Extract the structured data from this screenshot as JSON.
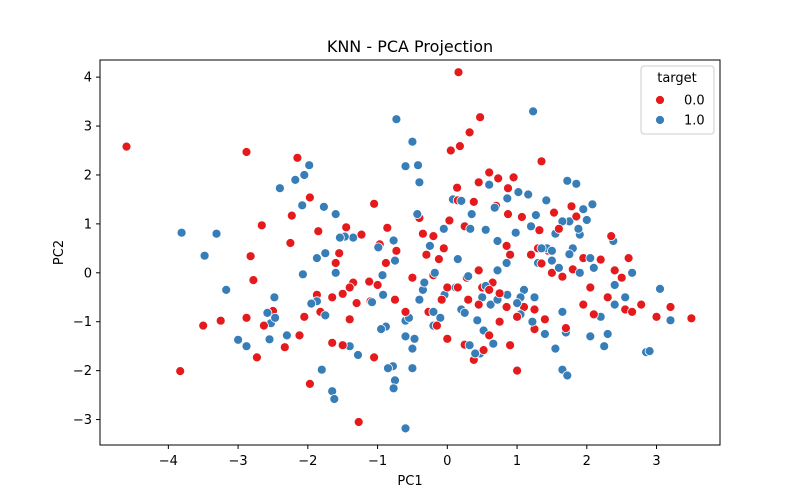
{
  "chart_data": {
    "type": "scatter",
    "title": "KNN - PCA Projection",
    "xlabel": "PC1",
    "ylabel": "PC2",
    "xlim": [
      -4.98,
      3.91
    ],
    "ylim": [
      -3.52,
      4.35
    ],
    "xticks": [
      -4,
      -3,
      -2,
      -1,
      0,
      1,
      2,
      3
    ],
    "yticks": [
      -3,
      -2,
      -1,
      0,
      1,
      2,
      3,
      4
    ],
    "xtick_labels": [
      "−4",
      "−3",
      "−2",
      "−1",
      "0",
      "1",
      "2",
      "3"
    ],
    "ytick_labels": [
      "−3",
      "−2",
      "−1",
      "0",
      "1",
      "2",
      "3",
      "4"
    ],
    "grid": false,
    "legend": {
      "title": "target",
      "placement": "upper right",
      "entries": [
        {
          "label": "0.0",
          "color": "#e41a1c"
        },
        {
          "label": "1.0",
          "color": "#377eb8"
        }
      ]
    },
    "series": [
      {
        "name": "0.0",
        "color": "#e41a1c",
        "points": [
          [
            -4.6,
            2.58
          ],
          [
            -3.83,
            -2.01
          ],
          [
            -2.88,
            2.47
          ],
          [
            -2.15,
            2.35
          ],
          [
            -1.97,
            1.54
          ],
          [
            -2.23,
            1.17
          ],
          [
            -2.66,
            0.97
          ],
          [
            -2.25,
            0.61
          ],
          [
            -1.85,
            0.85
          ],
          [
            -1.45,
            0.93
          ],
          [
            -1.23,
            0.78
          ],
          [
            -1.05,
            1.41
          ],
          [
            -0.86,
            0.92
          ],
          [
            -0.73,
            0.45
          ],
          [
            -0.88,
            0.2
          ],
          [
            -0.97,
            0.58
          ],
          [
            -0.35,
            0.8
          ],
          [
            -0.4,
            1.12
          ],
          [
            -0.2,
            0.75
          ],
          [
            -0.5,
            -0.1
          ],
          [
            -0.3,
            0.37
          ],
          [
            -0.12,
            0.28
          ],
          [
            0.03,
            1.07
          ],
          [
            0.14,
            1.74
          ],
          [
            0.18,
            2.59
          ],
          [
            0.32,
            2.87
          ],
          [
            0.47,
            3.18
          ],
          [
            0.16,
            4.1
          ],
          [
            0.15,
            1.48
          ],
          [
            0.45,
            1.85
          ],
          [
            0.73,
            1.93
          ],
          [
            0.87,
            1.73
          ],
          [
            0.7,
            1.37
          ],
          [
            0.95,
            1.95
          ],
          [
            0.87,
            1.2
          ],
          [
            1.07,
            1.14
          ],
          [
            1.32,
            0.87
          ],
          [
            1.35,
            2.28
          ],
          [
            1.53,
            1.23
          ],
          [
            1.78,
            1.36
          ],
          [
            1.85,
            1.15
          ],
          [
            1.2,
            0.37
          ],
          [
            1.35,
            0.19
          ],
          [
            1.5,
            0.0
          ],
          [
            1.65,
            -0.08
          ],
          [
            1.8,
            0.07
          ],
          [
            1.95,
            0.3
          ],
          [
            2.2,
            0.27
          ],
          [
            2.6,
            0.3
          ],
          [
            2.5,
            -0.1
          ],
          [
            2.3,
            -0.5
          ],
          [
            2.1,
            -0.85
          ],
          [
            1.95,
            -0.65
          ],
          [
            2.55,
            -0.75
          ],
          [
            2.65,
            -0.8
          ],
          [
            3.0,
            -0.9
          ],
          [
            3.2,
            -0.7
          ],
          [
            3.5,
            -0.93
          ],
          [
            2.78,
            -0.65
          ],
          [
            1.7,
            -1.13
          ],
          [
            1.4,
            -0.95
          ],
          [
            1.25,
            -1.15
          ],
          [
            1.0,
            -0.9
          ],
          [
            0.85,
            -0.7
          ],
          [
            0.75,
            -1.0
          ],
          [
            0.9,
            -1.48
          ],
          [
            1.0,
            -2.0
          ],
          [
            0.6,
            -1.28
          ],
          [
            0.52,
            -1.58
          ],
          [
            0.38,
            -1.78
          ],
          [
            0.25,
            -1.47
          ],
          [
            0.0,
            -1.35
          ],
          [
            -0.15,
            -1.08
          ],
          [
            -0.27,
            -0.8
          ],
          [
            -0.08,
            -0.55
          ],
          [
            0.15,
            -0.3
          ],
          [
            0.28,
            -0.1
          ],
          [
            0.45,
            0.05
          ],
          [
            0.6,
            -0.35
          ],
          [
            0.75,
            -0.42
          ],
          [
            1.05,
            -0.52
          ],
          [
            1.1,
            -0.7
          ],
          [
            -1.4,
            -0.95
          ],
          [
            -1.3,
            -0.62
          ],
          [
            -1.1,
            -0.58
          ],
          [
            -1.65,
            -1.43
          ],
          [
            -1.5,
            -1.48
          ],
          [
            -1.05,
            -1.73
          ],
          [
            -1.27,
            -3.05
          ],
          [
            -1.97,
            -2.27
          ],
          [
            -2.12,
            -1.28
          ],
          [
            -2.33,
            -1.52
          ],
          [
            -2.63,
            -1.08
          ],
          [
            -2.73,
            -1.73
          ],
          [
            -2.88,
            -0.92
          ],
          [
            -3.5,
            -1.08
          ],
          [
            -3.25,
            -0.98
          ],
          [
            -2.82,
            0.34
          ],
          [
            -2.78,
            -0.15
          ],
          [
            -2.5,
            -0.78
          ],
          [
            -1.87,
            -0.45
          ],
          [
            -1.65,
            -0.5
          ],
          [
            -1.5,
            -0.43
          ],
          [
            -1.4,
            -0.3
          ],
          [
            -1.12,
            -0.18
          ],
          [
            -1.0,
            -0.25
          ],
          [
            -0.75,
            -0.55
          ],
          [
            -0.6,
            -0.8
          ],
          [
            -0.2,
            -0.05
          ],
          [
            0.0,
            -0.3
          ],
          [
            0.3,
            -0.55
          ],
          [
            0.5,
            -0.3
          ],
          [
            0.65,
            -0.2
          ],
          [
            -1.82,
            -0.8
          ],
          [
            -2.05,
            -0.9
          ],
          [
            -1.35,
            -0.2
          ],
          [
            0.38,
            1.45
          ],
          [
            0.6,
            2.05
          ],
          [
            0.05,
            2.5
          ],
          [
            0.25,
            0.95
          ],
          [
            -0.05,
            0.5
          ],
          [
            1.45,
            0.45
          ],
          [
            1.3,
            0.5
          ],
          [
            1.25,
            -0.75
          ],
          [
            1.6,
            0.9
          ],
          [
            2.35,
            0.75
          ],
          [
            2.4,
            0.05
          ],
          [
            2.05,
            -0.3
          ],
          [
            0.9,
            0.37
          ],
          [
            -1.6,
            0.2
          ],
          [
            -1.55,
            0.4
          ],
          [
            0.45,
            -0.65
          ],
          [
            0.85,
            0.55
          ]
        ]
      },
      {
        "name": "1.0",
        "color": "#377eb8",
        "points": [
          [
            -3.81,
            0.82
          ],
          [
            -3.31,
            0.8
          ],
          [
            -3.48,
            0.35
          ],
          [
            -3.17,
            -0.35
          ],
          [
            -2.58,
            -0.82
          ],
          [
            -2.53,
            -1.03
          ],
          [
            -2.47,
            -0.92
          ],
          [
            -2.48,
            -0.5
          ],
          [
            -2.3,
            -1.28
          ],
          [
            -2.55,
            -1.36
          ],
          [
            -2.88,
            -1.5
          ],
          [
            -3.0,
            -1.37
          ],
          [
            -2.67,
            0.97
          ],
          [
            -2.4,
            1.73
          ],
          [
            -2.18,
            1.9
          ],
          [
            -2.05,
            2.0
          ],
          [
            -1.98,
            2.2
          ],
          [
            -2.08,
            1.38
          ],
          [
            -1.77,
            1.35
          ],
          [
            -1.6,
            1.2
          ],
          [
            -1.47,
            0.74
          ],
          [
            -1.54,
            0.72
          ],
          [
            -1.87,
            0.3
          ],
          [
            -1.87,
            -0.58
          ],
          [
            -1.95,
            -0.63
          ],
          [
            -2.07,
            -0.03
          ],
          [
            -1.75,
            -0.87
          ],
          [
            -1.8,
            -1.98
          ],
          [
            -1.62,
            -2.58
          ],
          [
            -1.65,
            -2.42
          ],
          [
            -1.4,
            -1.5
          ],
          [
            -1.28,
            -1.68
          ],
          [
            -0.95,
            -1.15
          ],
          [
            -0.88,
            -1.1
          ],
          [
            -1.08,
            -0.6
          ],
          [
            -0.92,
            -0.45
          ],
          [
            -0.85,
            -1.95
          ],
          [
            -0.75,
            -2.2
          ],
          [
            -0.77,
            -2.36
          ],
          [
            -0.78,
            -1.91
          ],
          [
            -0.6,
            -3.18
          ],
          [
            -0.5,
            -1.95
          ],
          [
            -0.6,
            -0.98
          ],
          [
            -0.55,
            -0.92
          ],
          [
            -0.6,
            -1.3
          ],
          [
            -0.4,
            -0.55
          ],
          [
            -0.33,
            -0.2
          ],
          [
            -0.47,
            -1.35
          ],
          [
            -0.5,
            -1.55
          ],
          [
            -0.2,
            -1.08
          ],
          [
            -0.2,
            -0.8
          ],
          [
            -0.04,
            -0.45
          ],
          [
            0.12,
            -0.3
          ],
          [
            0.2,
            -0.75
          ],
          [
            0.43,
            -0.97
          ],
          [
            0.52,
            -1.18
          ],
          [
            0.47,
            -1.65
          ],
          [
            0.4,
            -1.65
          ],
          [
            0.32,
            -1.48
          ],
          [
            0.66,
            -1.45
          ],
          [
            0.62,
            -0.65
          ],
          [
            0.5,
            -0.5
          ],
          [
            0.72,
            -0.55
          ],
          [
            0.86,
            -0.45
          ],
          [
            1.0,
            -0.62
          ],
          [
            1.1,
            -0.35
          ],
          [
            1.25,
            -0.5
          ],
          [
            1.3,
            0.2
          ],
          [
            1.35,
            0.5
          ],
          [
            1.5,
            0.25
          ],
          [
            1.6,
            0.1
          ],
          [
            1.75,
            0.38
          ],
          [
            1.8,
            0.5
          ],
          [
            1.88,
            0.9
          ],
          [
            1.9,
            0.78
          ],
          [
            2.08,
            1.4
          ],
          [
            2.0,
            1.08
          ],
          [
            1.95,
            1.3
          ],
          [
            1.55,
            0.8
          ],
          [
            1.65,
            1.05
          ],
          [
            1.75,
            1.05
          ],
          [
            1.72,
            1.88
          ],
          [
            1.85,
            1.82
          ],
          [
            1.42,
            1.48
          ],
          [
            1.27,
            1.18
          ],
          [
            1.16,
            1.6
          ],
          [
            1.02,
            1.65
          ],
          [
            0.86,
            1.52
          ],
          [
            0.68,
            1.33
          ],
          [
            0.2,
            1.47
          ],
          [
            0.08,
            1.5
          ],
          [
            -0.42,
            2.2
          ],
          [
            -0.4,
            1.85
          ],
          [
            -0.43,
            1.2
          ],
          [
            -0.5,
            2.68
          ],
          [
            -0.73,
            3.14
          ],
          [
            -0.6,
            2.18
          ],
          [
            -0.77,
            0.66
          ],
          [
            -0.75,
            0.25
          ],
          [
            -0.93,
            -0.05
          ],
          [
            -0.99,
            0.52
          ],
          [
            -1.35,
            0.72
          ],
          [
            -1.6,
            0.0
          ],
          [
            -1.75,
            0.4
          ],
          [
            -0.25,
            0.55
          ],
          [
            -0.05,
            0.9
          ],
          [
            0.35,
            1.2
          ],
          [
            0.55,
            0.88
          ],
          [
            0.72,
            0.65
          ],
          [
            0.98,
            0.82
          ],
          [
            1.2,
            0.95
          ],
          [
            1.5,
            0.45
          ],
          [
            1.9,
            0.0
          ],
          [
            2.1,
            0.1
          ],
          [
            2.4,
            -0.25
          ],
          [
            2.55,
            -0.5
          ],
          [
            2.3,
            -1.25
          ],
          [
            2.25,
            -1.5
          ],
          [
            2.05,
            -1.3
          ],
          [
            2.2,
            -0.9
          ],
          [
            2.85,
            -1.62
          ],
          [
            2.9,
            -1.6
          ],
          [
            3.05,
            -0.33
          ],
          [
            3.2,
            -0.97
          ],
          [
            2.4,
            -0.65
          ],
          [
            2.38,
            0.65
          ],
          [
            2.05,
            0.3
          ],
          [
            2.65,
            0.0
          ],
          [
            1.65,
            -0.8
          ],
          [
            1.7,
            -1.22
          ],
          [
            1.55,
            -1.55
          ],
          [
            1.65,
            -1.98
          ],
          [
            1.72,
            -2.1
          ],
          [
            1.4,
            -1.25
          ],
          [
            1.22,
            -1.0
          ],
          [
            1.05,
            -0.85
          ],
          [
            0.55,
            -0.27
          ],
          [
            0.3,
            -0.07
          ],
          [
            0.15,
            0.28
          ],
          [
            -0.18,
            0.0
          ],
          [
            -0.1,
            -0.92
          ],
          [
            -0.35,
            -0.35
          ],
          [
            1.05,
            -0.5
          ],
          [
            0.72,
            0.05
          ],
          [
            0.85,
            0.2
          ],
          [
            0.33,
            0.9
          ],
          [
            1.43,
            0.5
          ],
          [
            0.25,
            -0.82
          ],
          [
            1.23,
            3.3
          ],
          [
            0.6,
            1.8
          ]
        ]
      }
    ]
  }
}
